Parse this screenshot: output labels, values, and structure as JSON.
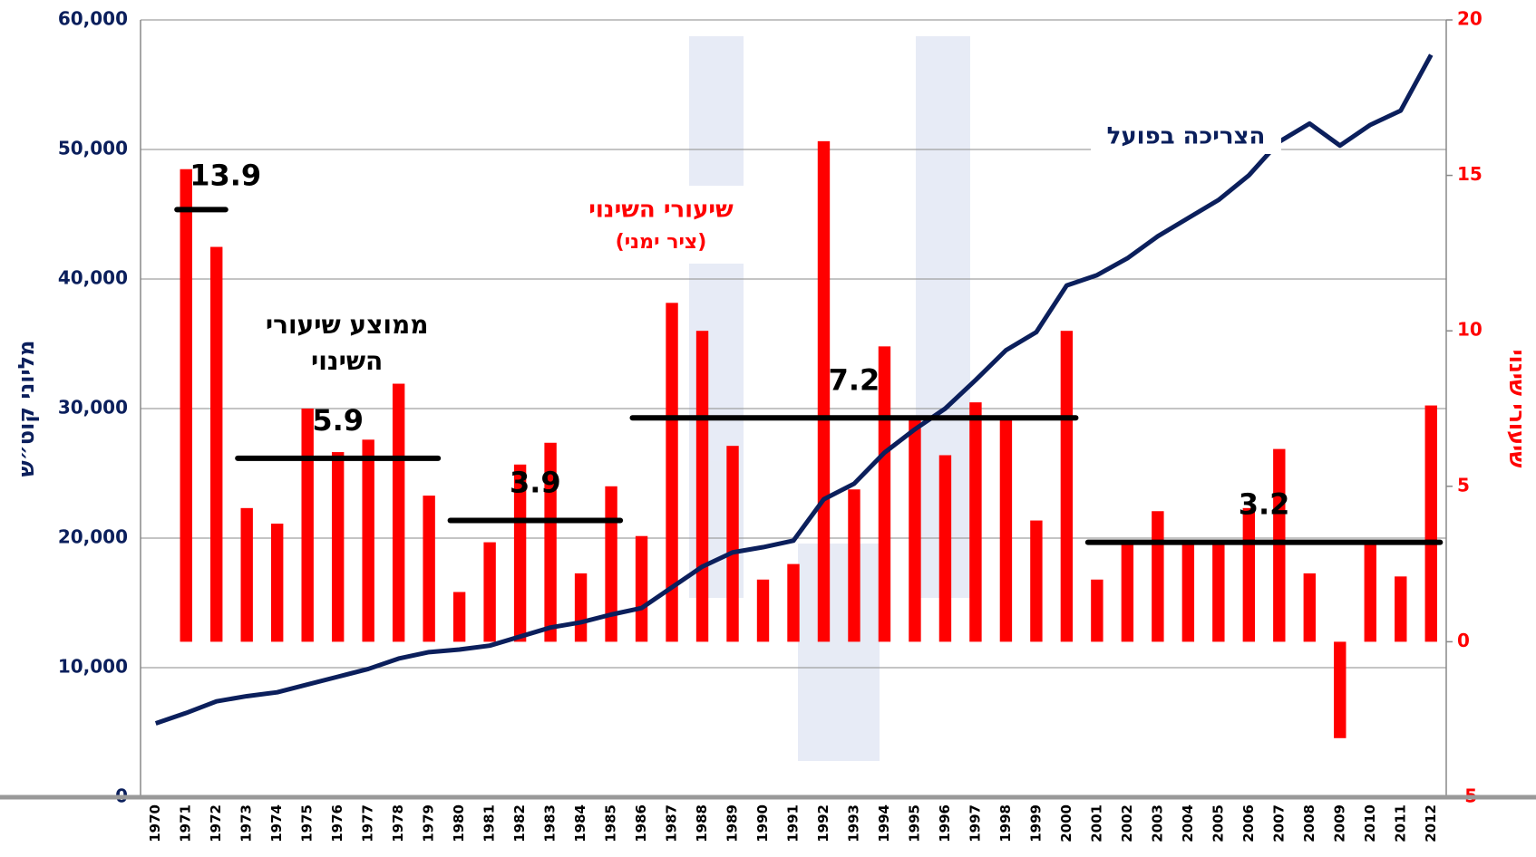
{
  "chart_data": {
    "type": "combo",
    "categories": [
      "1970",
      "1971",
      "1972",
      "1973",
      "1974",
      "1975",
      "1976",
      "1977",
      "1978",
      "1979",
      "1980",
      "1981",
      "1982",
      "1983",
      "1984",
      "1985",
      "1986",
      "1987",
      "1988",
      "1989",
      "1990",
      "1991",
      "1992",
      "1993",
      "1994",
      "1995",
      "1996",
      "1997",
      "1998",
      "1999",
      "2000",
      "2001",
      "2002",
      "2003",
      "2004",
      "2005",
      "2006",
      "2007",
      "2008",
      "2009",
      "2010",
      "2011",
      "2012"
    ],
    "series": [
      {
        "name": "שיעורי השינוי",
        "note": "(ציר ימני)",
        "type": "bar",
        "axis": "y2",
        "color": "#ff0000",
        "values": [
          null,
          15.2,
          12.7,
          4.3,
          3.8,
          7.5,
          6.1,
          6.5,
          8.3,
          4.7,
          1.6,
          3.2,
          5.7,
          6.4,
          2.2,
          5.0,
          3.4,
          10.9,
          10.0,
          6.3,
          2.0,
          2.5,
          16.1,
          4.9,
          9.5,
          7.2,
          6.0,
          7.7,
          7.2,
          3.9,
          10.0,
          2.0,
          3.2,
          4.2,
          3.2,
          3.2,
          4.3,
          6.2,
          2.2,
          -3.1,
          3.2,
          2.1,
          7.6
        ]
      },
      {
        "name": "הצריכה בפועל",
        "type": "line",
        "axis": "y",
        "color": "#0b1f5c",
        "values": [
          5700,
          6500,
          7400,
          7800,
          8100,
          8700,
          9300,
          9900,
          10700,
          11200,
          11400,
          11700,
          12400,
          13100,
          13500,
          14100,
          14600,
          16200,
          17800,
          18900,
          19300,
          19800,
          23000,
          24200,
          26600,
          28400,
          30000,
          32200,
          34500,
          35900,
          39500,
          40300,
          41600,
          43300,
          44700,
          46100,
          48000,
          50600,
          52000,
          50300,
          51900,
          53000,
          57300
        ]
      }
    ],
    "averages_title": [
      "ממוצע שיעורי",
      "השינוי"
    ],
    "averages": [
      {
        "value": 13.9,
        "start": "1971",
        "end": "1972"
      },
      {
        "value": 5.9,
        "start": "1973",
        "end": "1979"
      },
      {
        "value": 3.9,
        "start": "1980",
        "end": "1985"
      },
      {
        "value": 7.2,
        "start": "1986",
        "end": "2000"
      },
      {
        "value": 3.2,
        "start": "2001",
        "end": "2012"
      }
    ],
    "y_label": "מליוני קוט״ש",
    "y2_label": "שיעורי שינוי",
    "ylim": [
      0,
      60000
    ],
    "yticks": [
      0,
      {
        "value": 10000,
        "label": "10,000"
      },
      {
        "value": 20000,
        "label": "20,000"
      },
      {
        "value": 30000,
        "label": "30,000"
      },
      {
        "value": 40000,
        "label": "40,000"
      },
      {
        "value": 50000,
        "label": "50,000"
      },
      {
        "value": 60000,
        "label": "60,000"
      }
    ],
    "y2lim": [
      -5,
      20
    ],
    "y2ticks": [
      -5,
      0,
      5,
      10,
      15,
      20
    ],
    "grid": true
  }
}
